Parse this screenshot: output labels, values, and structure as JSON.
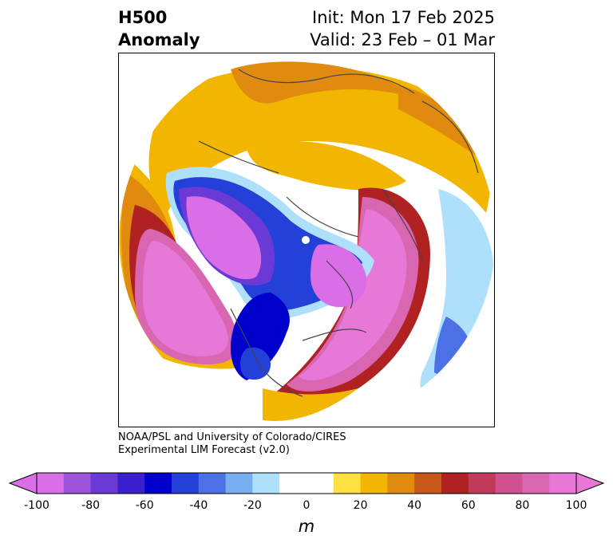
{
  "header": {
    "title_line1": "H500",
    "title_line2": "Anomaly",
    "init_text": "Init: Mon 17 Feb 2025",
    "valid_text": "Valid: 23 Feb – 01 Mar"
  },
  "credit": {
    "line1": "NOAA/PSL and University of Colorado/CIRES",
    "line2": "Experimental LIM Forecast (v2.0)"
  },
  "colorbar": {
    "unit": "m",
    "ticks": [
      "-100",
      "-80",
      "-60",
      "-40",
      "-20",
      "0",
      "20",
      "40",
      "60",
      "80",
      "100"
    ],
    "colors": [
      "#d96ee6",
      "#9e53db",
      "#6b3ad6",
      "#3a1fcf",
      "#0000cc",
      "#2340d8",
      "#4c70e6",
      "#78aef0",
      "#aee0fb",
      "#ffffff",
      "#ffffff",
      "#ffe040",
      "#f2b600",
      "#e08a10",
      "#c8581a",
      "#b02222",
      "#c03a5a",
      "#d05090",
      "#d866b0",
      "#e878d8"
    ],
    "under_color": "#d96ee6",
    "over_color": "#e878d8"
  }
}
